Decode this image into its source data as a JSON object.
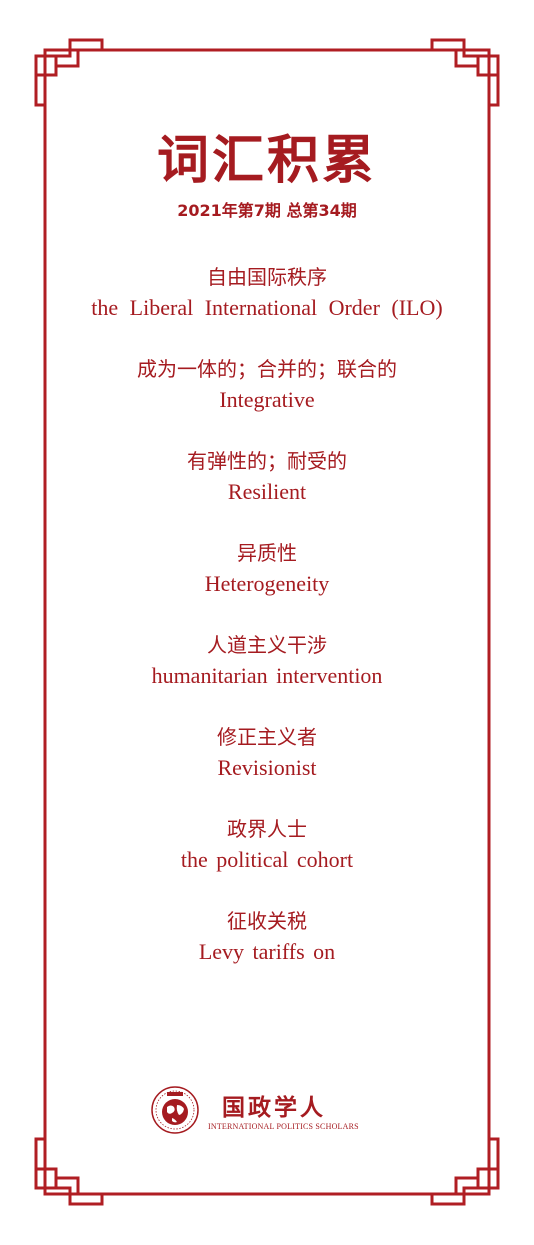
{
  "title": "词汇积累",
  "subtitle": "2021年第7期 总第34期",
  "terms": [
    {
      "zh": "自由国际秩序",
      "en": "the Liberal International Order (ILO)"
    },
    {
      "zh": "成为一体的；合并的；联合的",
      "en": "Integrative"
    },
    {
      "zh": "有弹性的；耐受的",
      "en": "Resilient"
    },
    {
      "zh": "异质性",
      "en": "Heterogeneity"
    },
    {
      "zh": "人道主义干涉",
      "en": "humanitarian intervention"
    },
    {
      "zh": "修正主义者",
      "en": "Revisionist"
    },
    {
      "zh": "政界人士",
      "en": "the political cohort"
    },
    {
      "zh": "征收关税",
      "en": "Levy tariffs on"
    }
  ],
  "logo": {
    "name": "国政学人",
    "subtitle": "INTERNATIONAL POLITICS SCHOLARS"
  },
  "colors": {
    "accent": "#a51b20",
    "background": "#ffffff"
  }
}
